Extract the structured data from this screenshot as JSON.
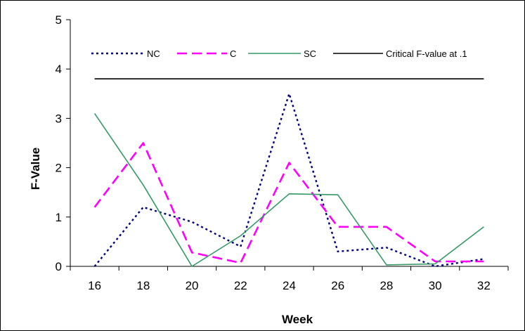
{
  "chart_data": {
    "type": "line",
    "xlabel": "Week",
    "ylabel": "F-Value",
    "ylim": [
      0,
      5
    ],
    "yticks": [
      "0",
      "1",
      "2",
      "3",
      "4",
      "5"
    ],
    "x": [
      16,
      18,
      20,
      22,
      24,
      26,
      28,
      30,
      32
    ],
    "xticks": [
      "16",
      "18",
      "20",
      "22",
      "24",
      "26",
      "28",
      "30",
      "32"
    ],
    "grid": false,
    "legend": "top",
    "series": [
      {
        "name": "NC",
        "color": "#000080",
        "style": "dotted",
        "values": [
          0.0,
          1.2,
          0.9,
          0.4,
          3.5,
          0.3,
          0.38,
          0.0,
          0.15
        ]
      },
      {
        "name": "C",
        "color": "#ff00ff",
        "style": "dashed",
        "values": [
          1.2,
          2.5,
          0.28,
          0.07,
          2.1,
          0.8,
          0.8,
          0.1,
          0.1
        ]
      },
      {
        "name": "SC",
        "color": "#339966",
        "style": "solid",
        "values": [
          3.1,
          1.65,
          0.0,
          0.62,
          1.47,
          1.45,
          0.03,
          0.05,
          0.8
        ]
      },
      {
        "name": "Critical F-value at .1",
        "color": "#000000",
        "style": "solid",
        "values": [
          3.8,
          3.8,
          3.8,
          3.8,
          3.8,
          3.8,
          3.8,
          3.8,
          3.8
        ]
      }
    ]
  }
}
